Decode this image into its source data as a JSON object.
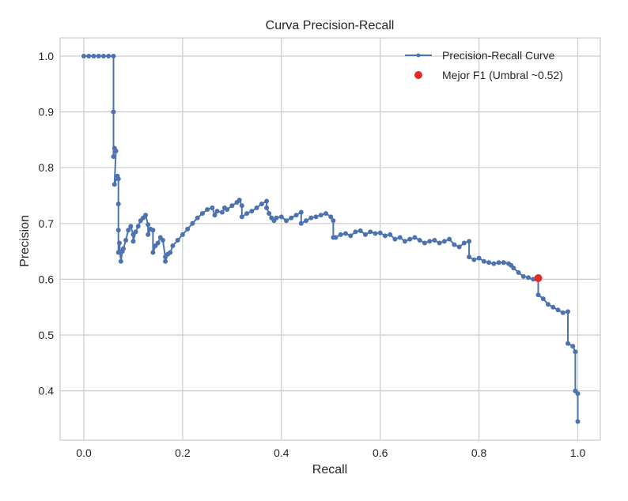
{
  "chart_data": {
    "type": "line",
    "title": "Curva Precision-Recall",
    "xlabel": "Recall",
    "ylabel": "Precision",
    "xlim": [
      -0.05,
      1.05
    ],
    "ylim": [
      0.31,
      1.035
    ],
    "xticks": [
      "0.0",
      "0.2",
      "0.4",
      "0.6",
      "0.8",
      "1.0"
    ],
    "yticks": [
      "0.4",
      "0.5",
      "0.6",
      "0.7",
      "0.8",
      "0.9",
      "1.0"
    ],
    "grid": true,
    "legend_position": "upper right",
    "legend": [
      "Precision-Recall Curve",
      "Mejor F1 (Umbral ~0.52)"
    ],
    "colors": {
      "curve": "#4c72b0",
      "best_point": "#e32b2b",
      "grid": "#cccccc",
      "axes": "#cccccc"
    },
    "series": [
      {
        "name": "Precision-Recall Curve",
        "x": [
          0.0,
          0.01,
          0.02,
          0.03,
          0.04,
          0.05,
          0.06,
          0.06,
          0.06,
          0.062,
          0.065,
          0.062,
          0.068,
          0.07,
          0.07,
          0.07,
          0.07,
          0.072,
          0.075,
          0.078,
          0.08,
          0.085,
          0.09,
          0.095,
          0.1,
          0.1,
          0.105,
          0.11,
          0.115,
          0.12,
          0.125,
          0.13,
          0.13,
          0.135,
          0.14,
          0.14,
          0.145,
          0.15,
          0.155,
          0.16,
          0.165,
          0.165,
          0.17,
          0.175,
          0.18,
          0.19,
          0.2,
          0.21,
          0.22,
          0.23,
          0.24,
          0.25,
          0.26,
          0.265,
          0.27,
          0.28,
          0.285,
          0.29,
          0.3,
          0.31,
          0.315,
          0.32,
          0.32,
          0.33,
          0.34,
          0.35,
          0.36,
          0.37,
          0.37,
          0.375,
          0.38,
          0.385,
          0.39,
          0.4,
          0.41,
          0.42,
          0.43,
          0.44,
          0.44,
          0.45,
          0.46,
          0.47,
          0.48,
          0.49,
          0.5,
          0.505,
          0.505,
          0.51,
          0.52,
          0.53,
          0.54,
          0.55,
          0.56,
          0.57,
          0.58,
          0.59,
          0.6,
          0.61,
          0.62,
          0.63,
          0.64,
          0.65,
          0.66,
          0.67,
          0.68,
          0.69,
          0.7,
          0.71,
          0.72,
          0.73,
          0.74,
          0.75,
          0.76,
          0.77,
          0.78,
          0.78,
          0.79,
          0.8,
          0.81,
          0.82,
          0.83,
          0.84,
          0.85,
          0.86,
          0.865,
          0.87,
          0.88,
          0.89,
          0.9,
          0.91,
          0.92,
          0.92,
          0.93,
          0.94,
          0.95,
          0.96,
          0.97,
          0.98,
          0.98,
          0.99,
          0.995,
          0.995,
          1.0,
          1.0
        ],
        "y": [
          1.0,
          1.0,
          1.0,
          1.0,
          1.0,
          1.0,
          1.0,
          0.9,
          0.82,
          0.835,
          0.83,
          0.77,
          0.785,
          0.78,
          0.735,
          0.688,
          0.648,
          0.665,
          0.632,
          0.65,
          0.655,
          0.67,
          0.688,
          0.695,
          0.68,
          0.668,
          0.685,
          0.695,
          0.705,
          0.71,
          0.715,
          0.698,
          0.68,
          0.69,
          0.688,
          0.648,
          0.66,
          0.665,
          0.675,
          0.67,
          0.64,
          0.632,
          0.645,
          0.648,
          0.66,
          0.67,
          0.68,
          0.69,
          0.7,
          0.71,
          0.718,
          0.725,
          0.728,
          0.715,
          0.722,
          0.72,
          0.728,
          0.725,
          0.732,
          0.738,
          0.742,
          0.732,
          0.712,
          0.718,
          0.722,
          0.728,
          0.735,
          0.74,
          0.728,
          0.718,
          0.71,
          0.705,
          0.71,
          0.712,
          0.705,
          0.71,
          0.715,
          0.72,
          0.7,
          0.705,
          0.71,
          0.712,
          0.715,
          0.718,
          0.712,
          0.705,
          0.675,
          0.675,
          0.68,
          0.682,
          0.678,
          0.685,
          0.687,
          0.68,
          0.685,
          0.682,
          0.683,
          0.678,
          0.68,
          0.672,
          0.675,
          0.668,
          0.672,
          0.675,
          0.67,
          0.665,
          0.668,
          0.67,
          0.665,
          0.668,
          0.672,
          0.662,
          0.658,
          0.665,
          0.668,
          0.64,
          0.635,
          0.638,
          0.632,
          0.63,
          0.628,
          0.63,
          0.63,
          0.628,
          0.625,
          0.62,
          0.612,
          0.605,
          0.603,
          0.6,
          0.602,
          0.572,
          0.565,
          0.555,
          0.55,
          0.545,
          0.54,
          0.542,
          0.485,
          0.48,
          0.47,
          0.4,
          0.395,
          0.345
        ]
      }
    ],
    "best_point": {
      "label": "Mejor F1 (Umbral ~0.52)",
      "x": 0.92,
      "y": 0.602
    }
  }
}
